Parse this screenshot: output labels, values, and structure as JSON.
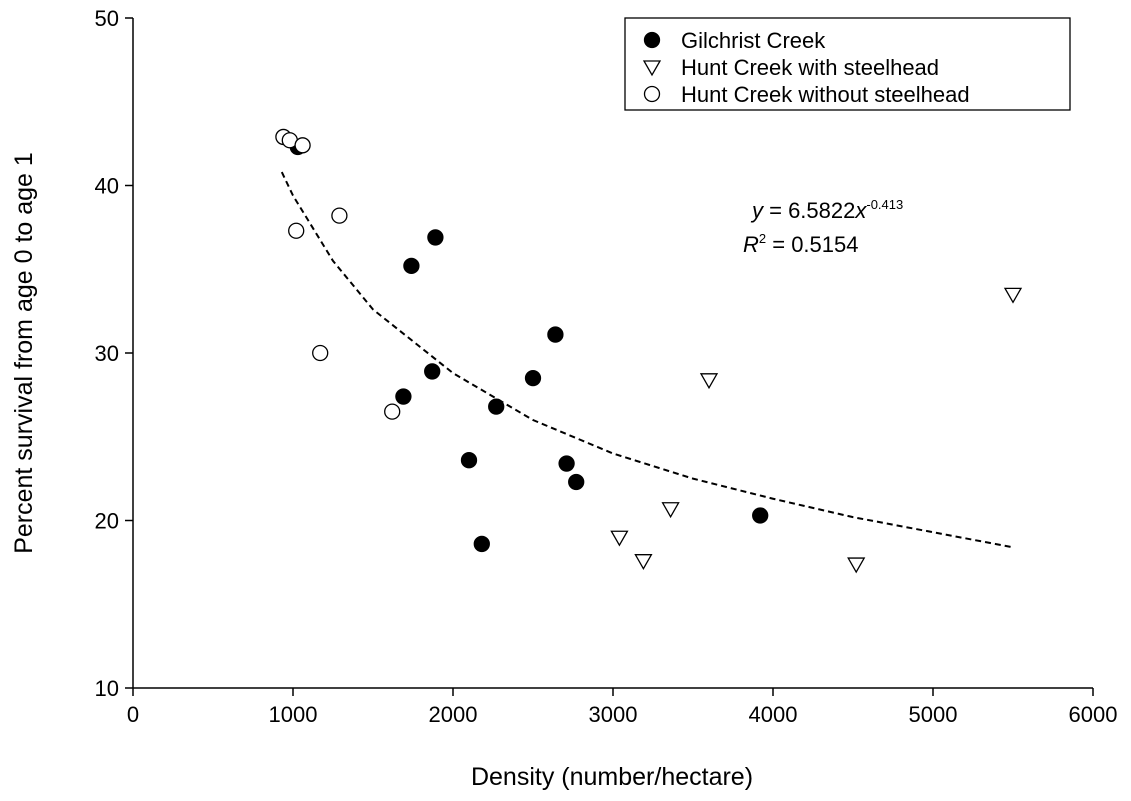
{
  "chart_data": {
    "type": "scatter",
    "xlabel": "Density (number/hectare)",
    "ylabel": "Percent survival from age 0 to age 1",
    "xlim": [
      0,
      6000
    ],
    "xticks": [
      0,
      1000,
      2000,
      3000,
      4000,
      5000,
      6000
    ],
    "ylim": [
      10,
      50
    ],
    "yticks": [
      10,
      20,
      30,
      40,
      50
    ],
    "grid": false,
    "legend": "upper right",
    "series": [
      {
        "name": "Gilchrist Creek",
        "marker": "filled-circle",
        "color": "#000000",
        "x": [
          1030,
          1740,
          1890,
          1870,
          1690,
          2100,
          2180,
          2270,
          2500,
          2640,
          2710,
          2770,
          3920
        ],
        "values": [
          42.3,
          35.2,
          36.9,
          28.9,
          27.4,
          23.6,
          18.6,
          26.8,
          28.5,
          31.1,
          23.4,
          22.3,
          20.3
        ]
      },
      {
        "name": "Hunt Creek with steelhead",
        "marker": "open-triangle-down",
        "color": "#000000",
        "x": [
          3040,
          3190,
          3360,
          3600,
          4520,
          5500
        ],
        "values": [
          19.0,
          17.6,
          20.7,
          28.4,
          17.4,
          33.5
        ]
      },
      {
        "name": "Hunt Creek without steelhead",
        "marker": "open-circle",
        "color": "#000000",
        "x": [
          940,
          980,
          1060,
          1020,
          1290,
          1170,
          1620
        ],
        "values": [
          42.9,
          42.7,
          42.4,
          37.3,
          38.2,
          30.0,
          26.5
        ]
      }
    ],
    "fit": {
      "style": "dashed",
      "color": "#000000",
      "x": [
        930,
        1000,
        1250,
        1500,
        2000,
        2500,
        3000,
        3500,
        4000,
        4500,
        5000,
        5500
      ],
      "values": [
        40.8,
        39.4,
        35.5,
        32.6,
        28.8,
        26.0,
        24.0,
        22.5,
        21.3,
        20.2,
        19.3,
        18.4
      ]
    },
    "fit_equation": [
      "y",
      " = 6.5822",
      "x",
      "-0.413"
    ],
    "fit_r2": [
      "R",
      "2",
      " = 0.5154"
    ]
  }
}
